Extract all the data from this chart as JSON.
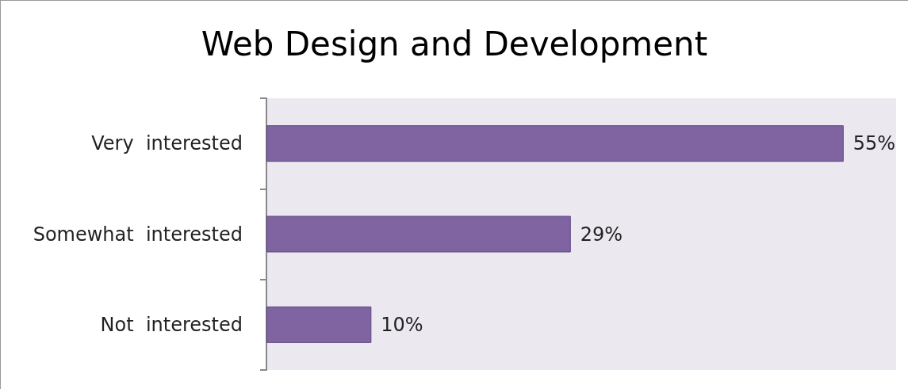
{
  "chart_data": {
    "type": "bar",
    "title": "Web Design and Development",
    "orientation": "horizontal",
    "categories": [
      "Very  interested",
      "Somewhat  interested",
      "Not  interested"
    ],
    "values": [
      55,
      29,
      10
    ],
    "value_labels": [
      "55%",
      "29%",
      "10%"
    ],
    "color": "#8064a2"
  }
}
